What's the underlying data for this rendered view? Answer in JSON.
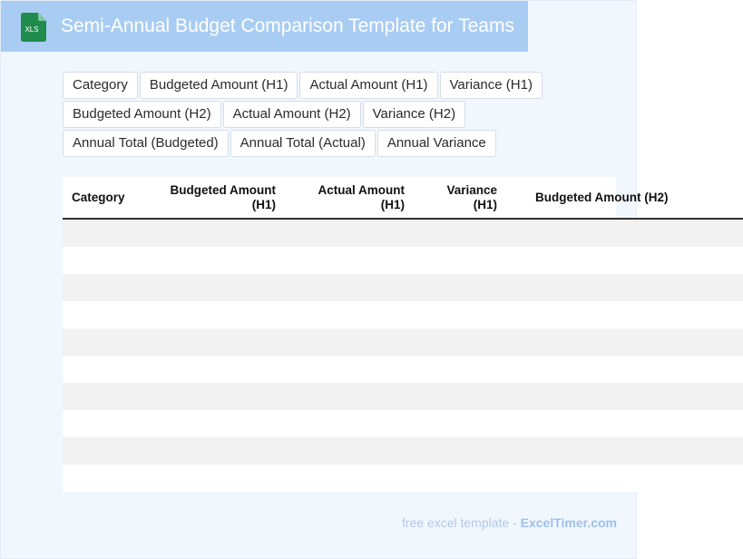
{
  "header": {
    "icon_label": "XLS",
    "title": "Semi-Annual Budget Comparison Template for Teams"
  },
  "chips": [
    [
      "Category",
      "Budgeted Amount (H1)",
      "Actual Amount (H1)",
      "Variance (H1)"
    ],
    [
      "Budgeted Amount (H2)",
      "Actual Amount (H2)",
      "Variance (H2)"
    ],
    [
      "Annual Total (Budgeted)",
      "Annual Total (Actual)",
      "Annual Variance"
    ]
  ],
  "table": {
    "columns": [
      "Category",
      "Budgeted Amount (H1)",
      "Actual Amount (H1)",
      "Variance (H1)",
      "Budgeted Amount (H2)"
    ],
    "row_count": 10
  },
  "footer": {
    "label": "free excel template - ",
    "brand": "ExcelTimer.com"
  },
  "colors": {
    "title_bar": "#a9cdf2",
    "page_background": "#f1f7fe",
    "icon_green": "#1f8c4e"
  }
}
